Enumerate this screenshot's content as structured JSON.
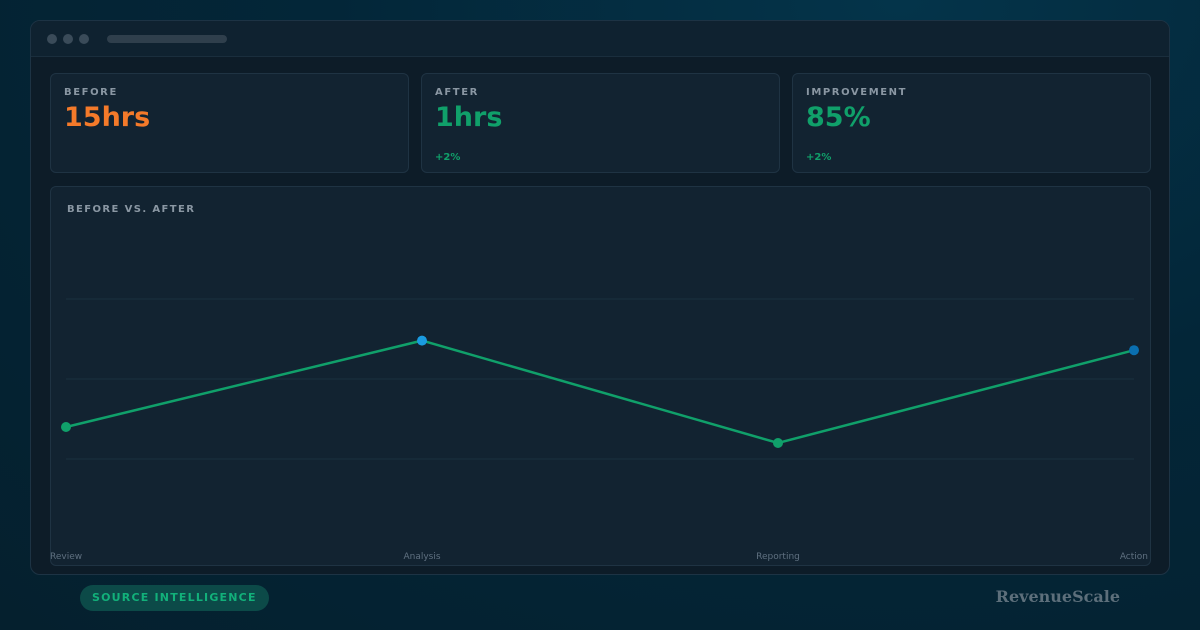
{
  "cards": [
    {
      "label": "BEFORE",
      "value": "15hrs",
      "delta": "",
      "color": "#f47a2a"
    },
    {
      "label": "AFTER",
      "value": "1hrs",
      "delta": "+2%",
      "color": "#10a06a"
    },
    {
      "label": "IMPROVEMENT",
      "value": "85%",
      "delta": "+2%",
      "color": "#10a06a"
    }
  ],
  "chart_panel": {
    "title": "BEFORE VS. AFTER"
  },
  "chart_data": {
    "type": "line",
    "title": "BEFORE VS. AFTER",
    "categories": [
      "Review",
      "Analysis",
      "Reporting",
      "Action"
    ],
    "series": [
      {
        "values": [
          35,
          62,
          30,
          59
        ]
      }
    ],
    "point_colors": [
      "#10a06a",
      "#1a9be0",
      "#10a06a",
      "#0a6fb0"
    ],
    "line_color": "#10a06a",
    "ylim": [
      0,
      100
    ],
    "grid": true
  },
  "footer": {
    "badge": "SOURCE INTELLIGENCE",
    "brand": "RevenueScale"
  }
}
